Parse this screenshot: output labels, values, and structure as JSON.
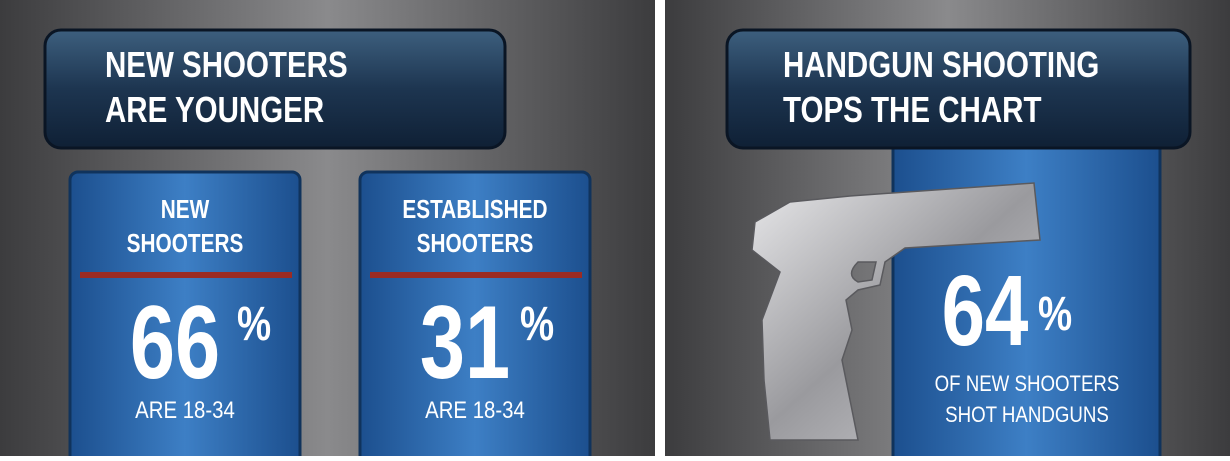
{
  "panels": [
    {
      "title": [
        "NEW SHOOTERS",
        "ARE YOUNGER"
      ],
      "cards": [
        {
          "label": [
            "NEW",
            "SHOOTERS"
          ],
          "value": 66,
          "unit": "%",
          "caption": "ARE 18-34"
        },
        {
          "label": [
            "ESTABLISHED",
            "SHOOTERS"
          ],
          "value": 31,
          "unit": "%",
          "caption": "ARE 18-34"
        }
      ]
    },
    {
      "title": [
        "HANDGUN SHOOTING",
        "TOPS THE CHART"
      ],
      "stat": {
        "value": 64,
        "unit": "%",
        "caption": [
          "OF NEW SHOOTERS",
          "SHOT HANDGUNS"
        ]
      }
    }
  ]
}
